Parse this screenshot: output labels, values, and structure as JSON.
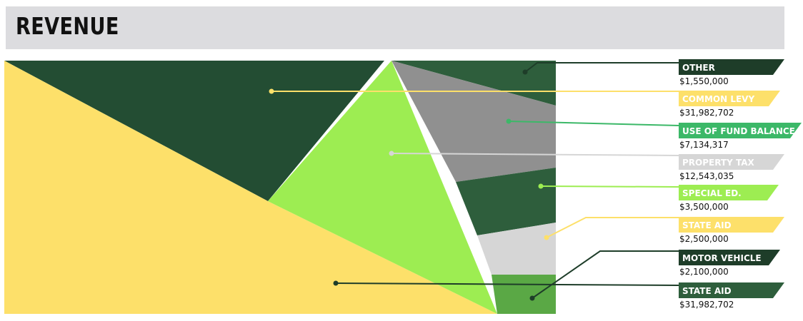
{
  "title": "REVENUE",
  "chart_data": {
    "type": "area",
    "title": "REVENUE",
    "categories": [
      "OTHER",
      "COMMON LEVY",
      "USE OF FUND BALANCE",
      "PROPERTY TAX",
      "SPECIAL ED.",
      "STATE AID",
      "MOTOR VEHICLE",
      "STATE AID"
    ],
    "series": [
      {
        "name": "OTHER",
        "label": "$1,550,000",
        "value": 1550000,
        "color": "#2e5e3c",
        "text_color": "#ffffff"
      },
      {
        "name": "COMMON LEVY",
        "label": "$31,982,702",
        "value": 31982702,
        "color": "#fde06a",
        "text_color": "#ffffff"
      },
      {
        "name": "USE OF FUND BALANCE",
        "label": "$7,134,317",
        "value": 7134317,
        "color": "#3cb868",
        "text_color": "#ffffff"
      },
      {
        "name": "PROPERTY TAX",
        "label": "$12,543,035",
        "value": 12543035,
        "color": "#d6d6d6",
        "text_color": "#ffffff"
      },
      {
        "name": "SPECIAL ED.",
        "label": "$3,500,000",
        "value": 3500000,
        "color": "#9ded52",
        "text_color": "#ffffff"
      },
      {
        "name": "STATE AID",
        "label": "$2,500,000",
        "value": 2500000,
        "color": "#fde06a",
        "text_color": "#ffffff"
      },
      {
        "name": "MOTOR VEHICLE",
        "label": "$2,100,000",
        "value": 2100000,
        "color": "#1e3d29",
        "text_color": "#ffffff"
      },
      {
        "name": "STATE AID",
        "label": "$31,982,702",
        "value": 31982702,
        "color": "#2e5e3c",
        "text_color": "#ffffff"
      }
    ],
    "legend": "right"
  }
}
